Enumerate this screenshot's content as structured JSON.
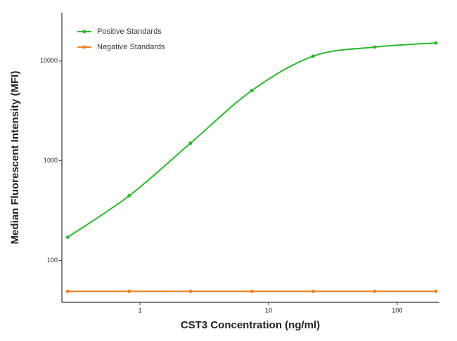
{
  "chart_data": {
    "type": "line",
    "x_label": "CST3 Concentration (ng/ml)",
    "y_label": "Median  Fluorescent Intensity  (MFI)",
    "x": [
      0.274,
      0.823,
      2.47,
      7.41,
      22.2,
      66.7,
      200
    ],
    "series": [
      {
        "name": "Positive Standards",
        "color": "#2db82d",
        "values": [
          171,
          445,
          1500,
          5060,
          11200,
          13800,
          15200
        ]
      },
      {
        "name": "Negative Standards",
        "color": "#f07f1e",
        "values": [
          49,
          49,
          49,
          49,
          49,
          49,
          49
        ]
      }
    ],
    "xlim": [
      0.247,
      213
    ],
    "ylim": [
      38,
      30600
    ],
    "xticks": [
      1,
      10,
      100
    ],
    "yticks": [
      100,
      1000,
      10000
    ],
    "xscale": "log",
    "yscale": "log",
    "legend": "top-left",
    "grid": false
  }
}
